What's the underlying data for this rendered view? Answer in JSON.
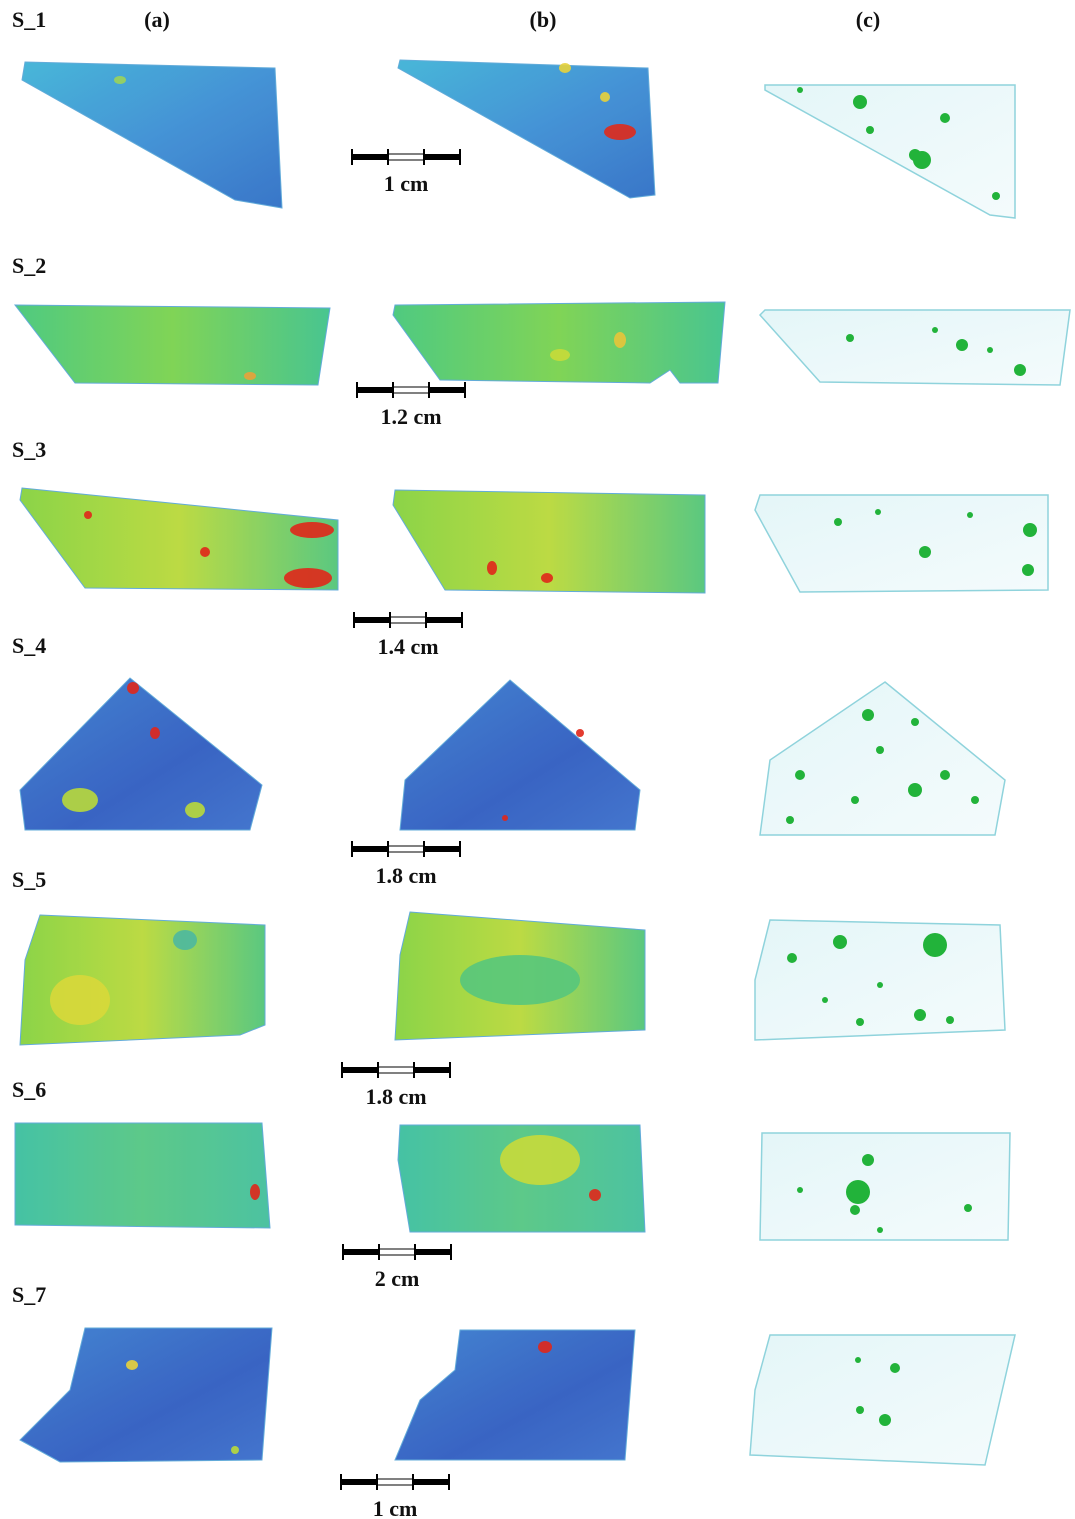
{
  "header": {
    "columns": [
      "(a)",
      "(b)",
      "(c)"
    ]
  },
  "rows": [
    {
      "label": "S_1",
      "scale": "1 cm"
    },
    {
      "label": "S_2",
      "scale": "1.2 cm"
    },
    {
      "label": "S_3",
      "scale": "1.4 cm"
    },
    {
      "label": "S_4",
      "scale": "1.8 cm"
    },
    {
      "label": "S_5",
      "scale": "1.8 cm"
    },
    {
      "label": "S_6",
      "scale": "2 cm"
    },
    {
      "label": "S_7",
      "scale": "1 cm"
    }
  ]
}
